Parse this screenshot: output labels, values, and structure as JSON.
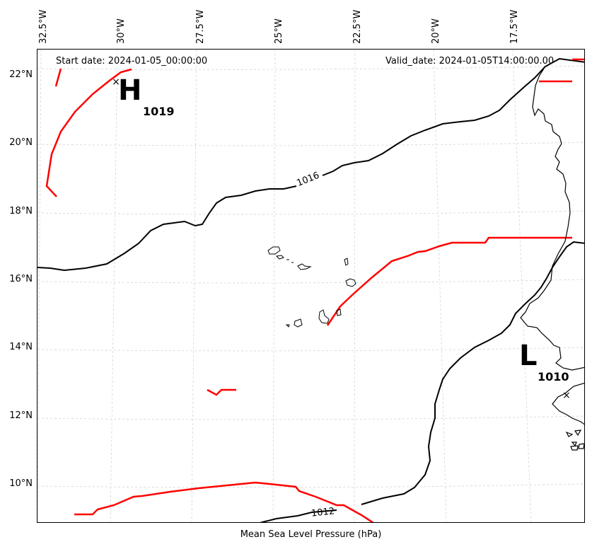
{
  "map": {
    "start_date": "Start date: 2024-01-05_00:00:00",
    "valid_date": "Valid_date: 2024-01-05T14:00:00.00",
    "xlabel": "Mean Sea Level Pressure (hPa)",
    "longitude_labels": [
      "32.5°W",
      "30°W",
      "27.5°W",
      "25°W",
      "22.5°W",
      "20°W",
      "17.5°W"
    ],
    "latitude_labels": [
      "22°N",
      "20°N",
      "18°N",
      "16°N",
      "14°N",
      "12°N",
      "10°N"
    ],
    "isobar_labels": [
      "1016",
      "1012"
    ],
    "high": {
      "symbol": "H",
      "value": "1019"
    },
    "low": {
      "symbol": "L",
      "value": "1010"
    },
    "colors": {
      "isobar": "#000000",
      "front": "#ff0000",
      "grid": "#cccccc",
      "coast": "#000000"
    }
  }
}
